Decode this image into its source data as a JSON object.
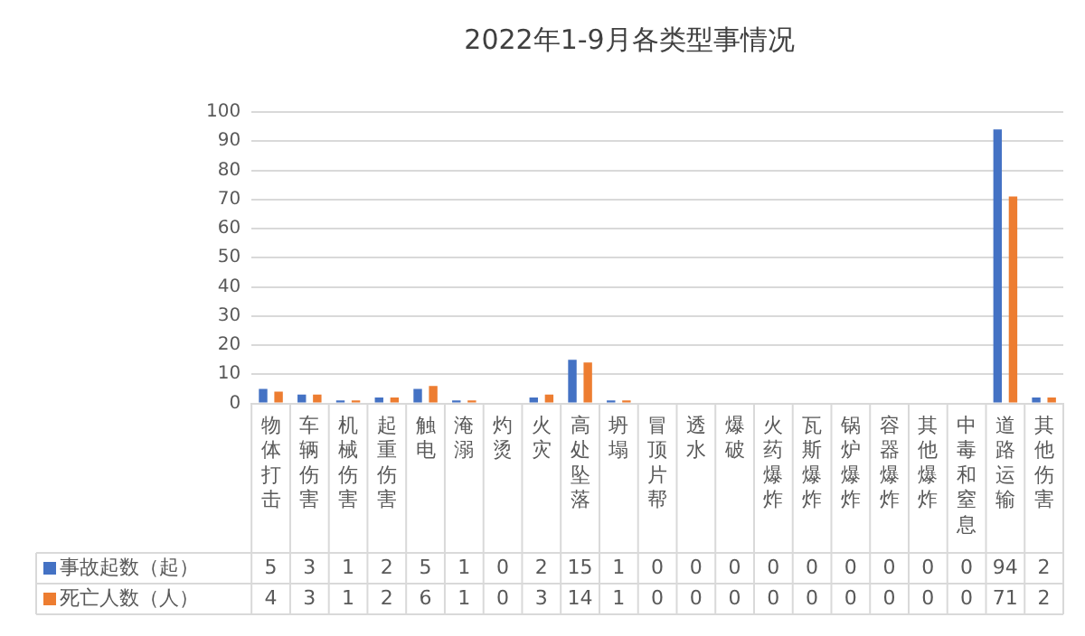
{
  "chart_data": {
    "type": "bar",
    "title": "2022年1-9月各类型事情况",
    "categories": [
      "物体打击",
      "车辆伤害",
      "机械伤害",
      "起重伤害",
      "触电",
      "淹溺",
      "灼烫",
      "火灾",
      "高处坠落",
      "坍塌",
      "冒顶片帮",
      "透水",
      "爆破",
      "火药爆炸",
      "瓦斯爆炸",
      "锅炉爆炸",
      "容器爆炸",
      "其他爆炸",
      "中毒和窒息",
      "道路运输",
      "其他伤害"
    ],
    "series": [
      {
        "name": "事故起数（起）",
        "color": "#4472c4",
        "values": [
          5,
          3,
          1,
          2,
          5,
          1,
          0,
          2,
          15,
          1,
          0,
          0,
          0,
          0,
          0,
          0,
          0,
          0,
          0,
          94,
          2
        ]
      },
      {
        "name": "死亡人数（人）",
        "color": "#ed7d31",
        "values": [
          4,
          3,
          1,
          2,
          6,
          1,
          0,
          3,
          14,
          1,
          0,
          0,
          0,
          0,
          0,
          0,
          0,
          0,
          0,
          71,
          2
        ]
      }
    ],
    "ylim": [
      0,
      100
    ],
    "yticks": [
      0,
      10,
      20,
      30,
      40,
      50,
      60,
      70,
      80,
      90,
      100
    ],
    "grid": "y",
    "legend": "bottom",
    "data_labels": true
  }
}
